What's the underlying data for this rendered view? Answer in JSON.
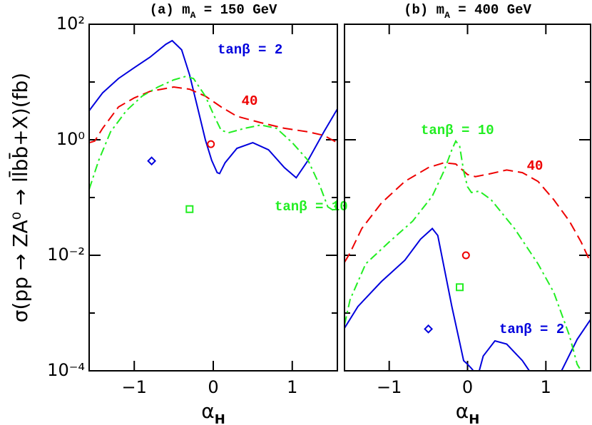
{
  "chart_data": [
    {
      "type": "line",
      "title": [
        "(a) m",
        "A",
        " = 150 GeV"
      ],
      "xlabel": [
        "α",
        "H"
      ],
      "ylabel": "σ(pp → ZA⁰ → ll̄bb̄+X)(fb)",
      "log_y": true,
      "xlim": [
        -1.5708,
        1.5708
      ],
      "xticks": [
        {
          "value": -1,
          "label": "−1"
        },
        0,
        1
      ],
      "ylim": [
        0.0001,
        100
      ],
      "yticks": [
        {
          "value": 100,
          "label": "10²"
        },
        {
          "value": 1,
          "label": "10⁰"
        },
        {
          "value": 0.01,
          "label": "10⁻²"
        },
        {
          "value": 0.0001,
          "label": "10⁻⁴"
        }
      ],
      "yminorticks": [
        10,
        0.1,
        0.001
      ],
      "series": [
        {
          "name": "tanβ = 2",
          "color": "#0000dd",
          "dash": "solid",
          "x": [
            -1.57,
            -1.4,
            -1.2,
            -1.0,
            -0.8,
            -0.6,
            -0.52,
            -0.4,
            -0.3,
            -0.2,
            -0.1,
            -0.02,
            0.05,
            0.08,
            0.15,
            0.3,
            0.5,
            0.7,
            0.9,
            1.05,
            1.2,
            1.4,
            1.57
          ],
          "values": [
            3.2,
            6.5,
            11.5,
            17.7,
            27,
            45,
            52,
            36,
            13.3,
            3.7,
            1.0,
            0.44,
            0.27,
            0.26,
            0.4,
            0.71,
            0.89,
            0.67,
            0.33,
            0.22,
            0.44,
            1.37,
            3.4
          ]
        },
        {
          "name": "40",
          "color": "#ee0000",
          "dash": "dashed",
          "x": [
            -1.57,
            -1.5,
            -1.4,
            -1.2,
            -1.0,
            -0.8,
            -0.5,
            -0.3,
            -0.1,
            0.1,
            0.3,
            0.6,
            0.9,
            1.2,
            1.4,
            1.57
          ],
          "values": [
            0.89,
            0.95,
            1.58,
            3.7,
            5.3,
            6.9,
            8.2,
            7.5,
            5.7,
            3.7,
            2.55,
            1.98,
            1.58,
            1.37,
            1.19,
            0.89
          ]
        },
        {
          "name": "tanβ = 10",
          "color": "#22ee22",
          "dash": "dashdot",
          "x": [
            -1.57,
            -1.45,
            -1.3,
            -1.1,
            -0.9,
            -0.7,
            -0.5,
            -0.35,
            -0.25,
            -0.1,
            0,
            0.1,
            0.2,
            0.4,
            0.6,
            0.8,
            1.0,
            1.2,
            1.35,
            1.45,
            1.52,
            1.57
          ],
          "values": [
            0.14,
            0.44,
            1.37,
            3.2,
            5.7,
            8.2,
            10.9,
            12.5,
            11.5,
            5.7,
            2.8,
            1.45,
            1.33,
            1.58,
            1.8,
            1.58,
            0.89,
            0.44,
            0.16,
            0.069,
            0.06,
            0.092
          ]
        }
      ],
      "markers": [
        {
          "shape": "circle",
          "color": "#ee0000",
          "x": -0.03,
          "y": 0.84
        },
        {
          "shape": "diamond",
          "color": "#0000dd",
          "x": -0.78,
          "y": 0.43
        },
        {
          "shape": "square",
          "color": "#22ee22",
          "x": -0.3,
          "y": 0.063
        }
      ]
    },
    {
      "type": "line",
      "title": [
        "(b) m",
        "A",
        " = 400 GeV"
      ],
      "xlabel": [
        "α",
        "H"
      ],
      "log_y": true,
      "xlim": [
        -1.5708,
        1.5708
      ],
      "xticks": [
        {
          "value": -1,
          "label": "−1"
        },
        0,
        1
      ],
      "ylim": [
        0.0001,
        100
      ],
      "yticks": [
        100,
        1,
        0.01,
        0.0001
      ],
      "yminorticks": [
        10,
        0.1,
        0.001
      ],
      "series": [
        {
          "name": "tanβ = 2",
          "color": "#0000dd",
          "dash": "solid",
          "x": [
            -1.57,
            -1.4,
            -1.1,
            -0.8,
            -0.6,
            -0.45,
            -0.38,
            -0.3,
            -0.2,
            -0.1,
            -0.05,
            0,
            0.05,
            0.13,
            0.2,
            0.35,
            0.5,
            0.7,
            0.9,
            1.1,
            1.2,
            1.4,
            1.57
          ],
          "values": [
            0.00055,
            0.0013,
            0.0035,
            0.0082,
            0.019,
            0.029,
            0.022,
            0.0062,
            0.0013,
            0.00031,
            0.00015,
            0.00013,
            0.00011,
            8e-05,
            0.00018,
            0.00033,
            0.00029,
            0.00015,
            6e-05,
            6e-05,
            0.0001,
            0.00035,
            0.00077
          ]
        },
        {
          "name": "40",
          "color": "#ee0000",
          "dash": "dashed",
          "x": [
            -1.57,
            -1.5,
            -1.35,
            -1.1,
            -0.8,
            -0.5,
            -0.3,
            -0.15,
            0,
            0.1,
            0.3,
            0.5,
            0.7,
            0.9,
            1.1,
            1.3,
            1.45,
            1.57
          ],
          "values": [
            0.0076,
            0.011,
            0.029,
            0.08,
            0.19,
            0.33,
            0.4,
            0.38,
            0.25,
            0.23,
            0.26,
            0.3,
            0.27,
            0.19,
            0.092,
            0.039,
            0.017,
            0.0076
          ]
        },
        {
          "name": "tanβ = 10",
          "color": "#22ee22",
          "dash": "dashdot",
          "x": [
            -1.57,
            -1.5,
            -1.3,
            -1.0,
            -0.7,
            -0.45,
            -0.3,
            -0.2,
            -0.15,
            -0.1,
            -0.05,
            0,
            0.05,
            0.15,
            0.3,
            0.6,
            0.9,
            1.1,
            1.3,
            1.4,
            1.45
          ],
          "values": [
            0.00063,
            0.0017,
            0.0071,
            0.017,
            0.039,
            0.106,
            0.29,
            0.67,
            0.95,
            0.77,
            0.29,
            0.153,
            0.122,
            0.129,
            0.092,
            0.029,
            0.0071,
            0.0023,
            0.00041,
            0.00013,
            0.0001
          ]
        }
      ],
      "markers": [
        {
          "shape": "circle",
          "color": "#ee0000",
          "x": -0.02,
          "y": 0.01
        },
        {
          "shape": "square",
          "color": "#22ee22",
          "x": -0.1,
          "y": 0.0028
        },
        {
          "shape": "diamond",
          "color": "#0000dd",
          "x": -0.5,
          "y": 0.00053
        }
      ]
    }
  ]
}
